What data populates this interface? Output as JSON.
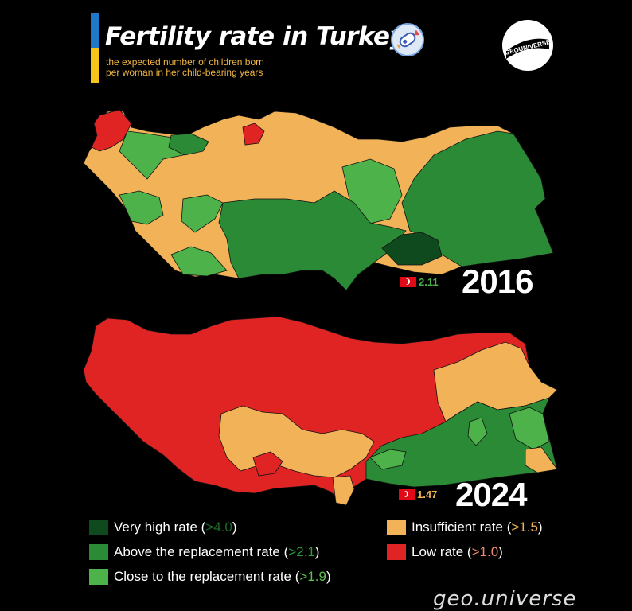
{
  "title": "Fertility rate in Turkey",
  "subtitle": "the expected number of children born\nper woman in her child-bearing years",
  "logo_text": "GEOUNIVERSE",
  "colors": {
    "very_high": "#0f4a1f",
    "above_replacement": "#2b8a36",
    "close_replacement": "#4db24a",
    "insufficient": "#f2b257",
    "low": "#e02424",
    "flag_red": "#e30a17"
  },
  "maps": [
    {
      "year": "2016",
      "national_rate": "2.11",
      "national_rate_color": "#4bb04a"
    },
    {
      "year": "2024",
      "national_rate": "1.47",
      "national_rate_color": "#f5b453"
    }
  ],
  "legend": [
    {
      "label": "Very high rate (",
      "threshold": ">4.0",
      "close": ")",
      "color": "#0f4a1f",
      "threshold_color": "#1f6b2a"
    },
    {
      "label": "Above the replacement rate (",
      "threshold": ">2.1",
      "close": ")",
      "color": "#2b8a36",
      "threshold_color": "#2f9a3b"
    },
    {
      "label": "Close to the replacement rate (",
      "threshold": ">1.9",
      "close": ")",
      "color": "#4db24a",
      "threshold_color": "#5cc04f"
    },
    {
      "label": "Insufficient rate (",
      "threshold": ">1.5",
      "close": ")",
      "color": "#f2b257",
      "threshold_color": "#f2b257"
    },
    {
      "label": "Low rate (",
      "threshold": ">1.0",
      "close": ")",
      "color": "#e02424",
      "threshold_color": "#f08a6a"
    }
  ],
  "watermark": "geo.universe"
}
